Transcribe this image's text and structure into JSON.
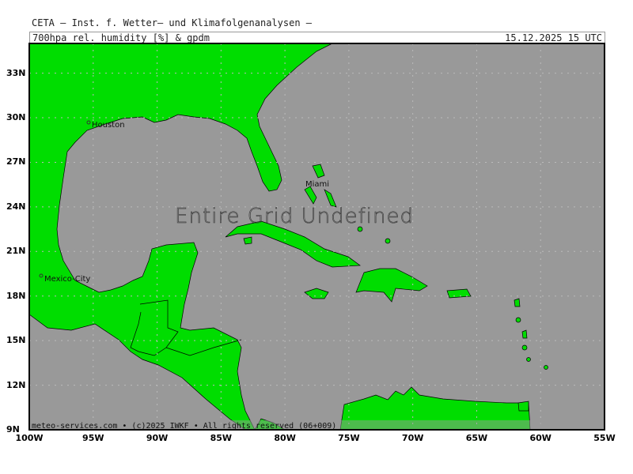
{
  "header": {
    "title": "CETA – Inst. f. Wetter– und Klimafolgenanalysen –",
    "parameter": "700hpa_rel._humidity_[%]_&_gpdm",
    "valid_time": "15.12.2025 15 UTC"
  },
  "map": {
    "overlay_message": "Entire Grid Undefined",
    "footer": "meteo-services.com • (c)2025 IWKF • All rights reserved (06+009)",
    "cities": [
      "Houston",
      "Miami",
      "Mexico-City"
    ],
    "lat_labels": [
      "33N",
      "30N",
      "27N",
      "24N",
      "21N",
      "18N",
      "15N",
      "12N",
      "9N"
    ],
    "lon_labels": [
      "100W",
      "95W",
      "90W",
      "85W",
      "80W",
      "75W",
      "70W",
      "65W",
      "60W",
      "55W"
    ],
    "extent": {
      "lon": [
        -100,
        -55
      ],
      "lat": [
        9,
        35
      ]
    },
    "colors": {
      "land": "#00dd00",
      "sea": "#999999",
      "coast": "#000000"
    }
  }
}
